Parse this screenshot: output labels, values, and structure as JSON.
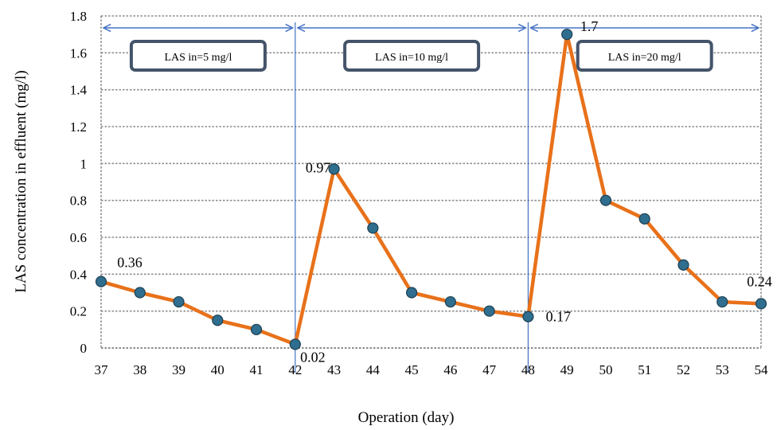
{
  "chart_data": {
    "type": "line",
    "xlabel": "Operation (day)",
    "ylabel": "LAS  concentration in effluent (mg/l)",
    "ylim": [
      0,
      1.8
    ],
    "yticks": [
      "0",
      "0.2",
      "0.4",
      "0.6",
      "0.8",
      "1",
      "1.2",
      "1.4",
      "1.6",
      "1.8"
    ],
    "grid": true,
    "x": [
      37,
      38,
      39,
      40,
      41,
      42,
      43,
      44,
      45,
      46,
      47,
      48,
      49,
      50,
      51,
      52,
      53,
      54
    ],
    "series": [
      {
        "values": [
          0.36,
          0.3,
          0.25,
          0.15,
          0.1,
          0.02,
          0.97,
          0.65,
          0.3,
          0.25,
          0.2,
          0.17,
          1.7,
          0.8,
          0.7,
          0.45,
          0.25,
          0.24
        ],
        "color": "#E8711A",
        "marker_color": "#2F6E8E"
      }
    ],
    "data_labels": [
      {
        "x": 37,
        "text": "0.36"
      },
      {
        "x": 42,
        "text": "0.02"
      },
      {
        "x": 43,
        "text": "0.97"
      },
      {
        "x": 48,
        "text": "0.17"
      },
      {
        "x": 49,
        "text": "1.7"
      },
      {
        "x": 54,
        "text": "0.24"
      }
    ],
    "regions": [
      {
        "from": 37,
        "to": 42,
        "label": "LAS in=5 mg/l"
      },
      {
        "from": 42,
        "to": 48,
        "label": "LAS in=10 mg/l"
      },
      {
        "from": 48,
        "to": 54,
        "label": "LAS in=20 mg/l"
      }
    ],
    "colors": {
      "line": "#E8711A",
      "marker": "#2F6E8E",
      "region_box": "#44546A",
      "arrow": "#4472C4",
      "grid": "#8C8C8C"
    }
  }
}
